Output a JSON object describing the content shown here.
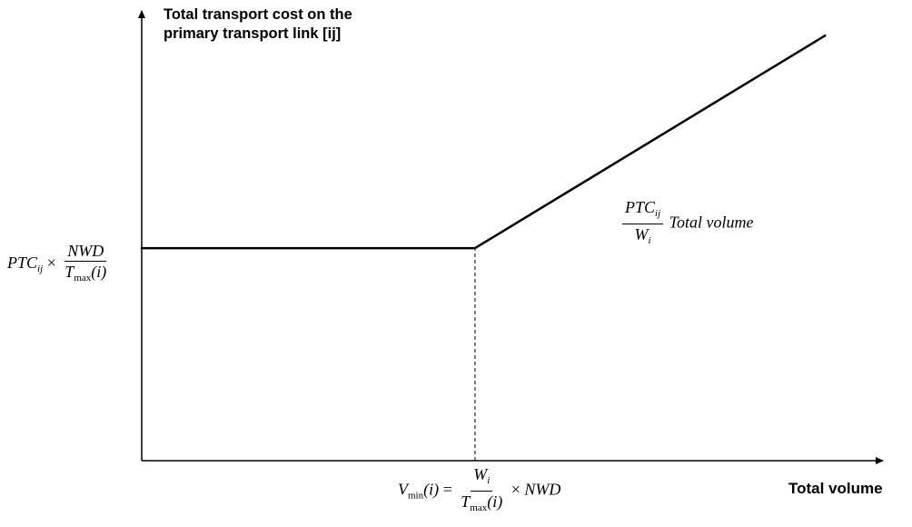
{
  "chart_data": {
    "type": "line",
    "title": "",
    "ylabel_lines": [
      "Total transport cost on the",
      "primary transport link [ij]"
    ],
    "xlabel": "Total volume",
    "xlim": [
      0,
      2.3
    ],
    "ylim": [
      0,
      1.7
    ],
    "grid": false,
    "legend": "none",
    "series": [
      {
        "points": [
          {
            "x": 0,
            "y": 0.8
          },
          {
            "x": 1,
            "y": 0.8
          },
          {
            "x": 2.05,
            "y": 1.6
          }
        ],
        "style": "solid",
        "color": "#000000"
      }
    ],
    "reference_lines": [
      {
        "orientation": "vertical",
        "x": 1,
        "from_y": 0,
        "to_y": 0.8,
        "style": "dashed"
      }
    ],
    "annotations": {
      "fixed_cost_label": {
        "prefix": "PTC",
        "prefix_sub": "ij",
        "times": "×",
        "num": "NWD",
        "den_main": "T",
        "den_sub": "max",
        "den_arg": "(i)"
      },
      "slope_label": {
        "num_main": "PTC",
        "num_sub": "ij",
        "den_main": "W",
        "den_sub": "i",
        "suffix": "Total volume"
      },
      "breakpoint_label": {
        "lhs_main": "V",
        "lhs_sub": "min",
        "lhs_arg": "(i)",
        "eq": "=",
        "num_main": "W",
        "num_sub": "i",
        "den_main": "T",
        "den_sub": "max",
        "den_arg": "(i)",
        "times": "×",
        "suffix": "NWD"
      }
    }
  }
}
